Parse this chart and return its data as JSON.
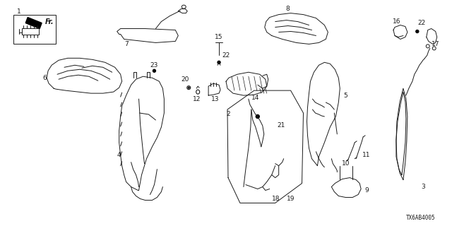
{
  "bg_color": "#ffffff",
  "fig_width": 6.4,
  "fig_height": 3.2,
  "dpi": 100,
  "diagram_code": "TX6AB4005",
  "line_color": "#1a1a1a",
  "label_fontsize": 6.5,
  "code_fontsize": 5.5
}
